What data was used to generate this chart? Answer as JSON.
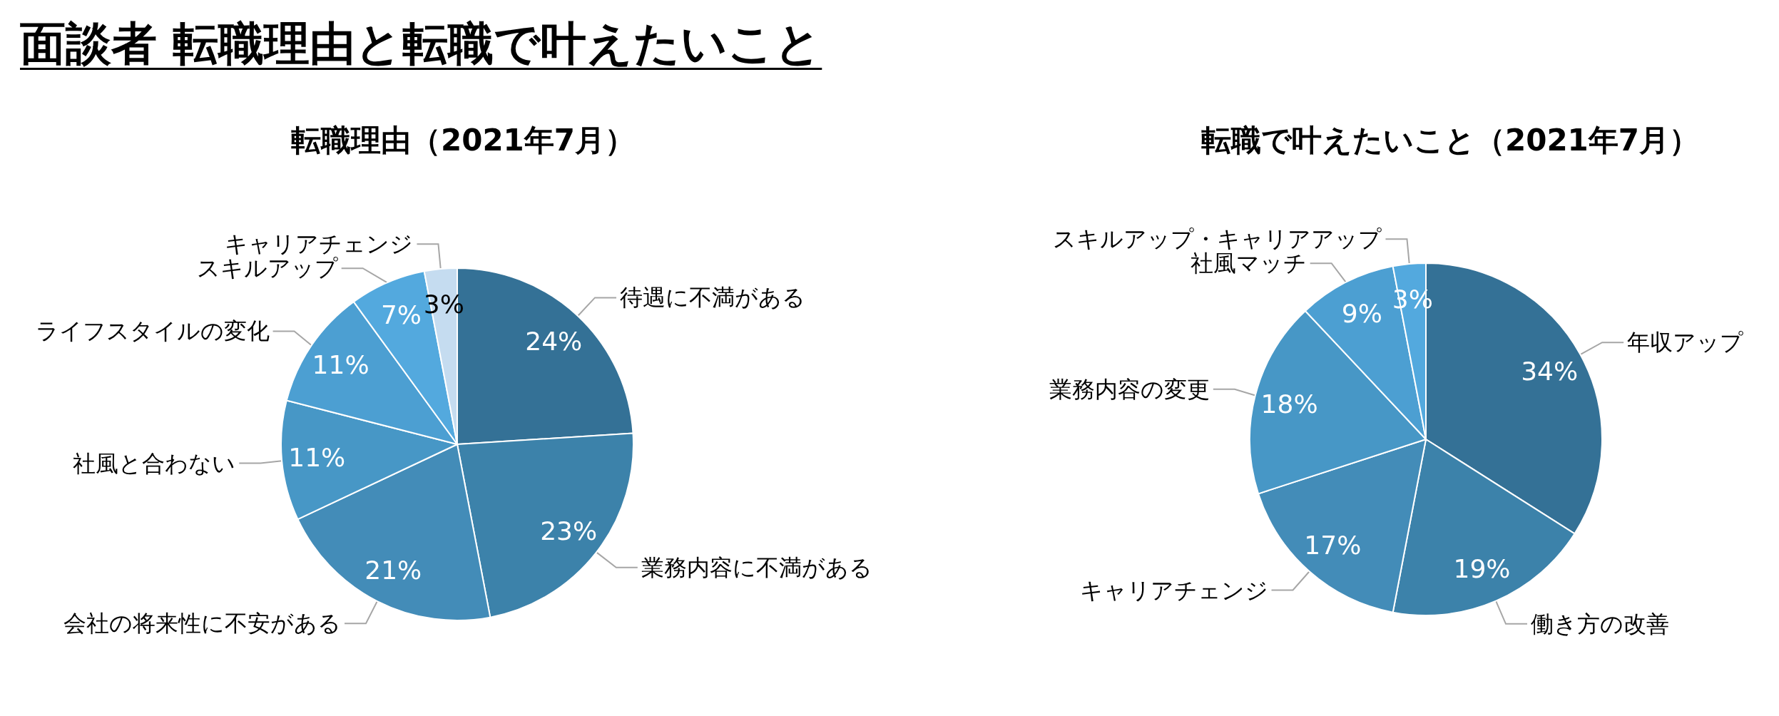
{
  "chart_data": [
    {
      "type": "pie",
      "title": "転職理由（2021年7月）",
      "categories": [
        "待遇に不満がある",
        "業務内容に不満がある",
        "会社の将来性に不安がある",
        "社風と合わない",
        "ライフスタイルの変化",
        "スキルアップ",
        "キャリアチェンジ"
      ],
      "values": [
        24,
        23,
        21,
        11,
        11,
        7,
        3
      ],
      "colors": [
        "#347196",
        "#3c82aa",
        "#438cb8",
        "#4797c6",
        "#4c9fd2",
        "#53a9de",
        "#c5dcf0"
      ],
      "value_labels": [
        "24%",
        "23%",
        "21%",
        "11%",
        "11%",
        "7%",
        "3%"
      ],
      "annotations": [
        "面談者 転職理由と転職で叶えたいこと"
      ]
    },
    {
      "type": "pie",
      "title": "転職で叶えたいこと（2021年7月）",
      "categories": [
        "年収アップ",
        "働き方の改善",
        "キャリアチェンジ",
        "業務内容の変更",
        "社風マッチ",
        "スキルアップ・キャリアアップ"
      ],
      "values": [
        34,
        19,
        17,
        18,
        9,
        3
      ],
      "colors": [
        "#347196",
        "#3c82aa",
        "#438cb8",
        "#4797c6",
        "#4c9fd2",
        "#53a9de"
      ],
      "value_labels": [
        "34%",
        "19%",
        "17%",
        "18%",
        "9%",
        "3%"
      ]
    }
  ]
}
